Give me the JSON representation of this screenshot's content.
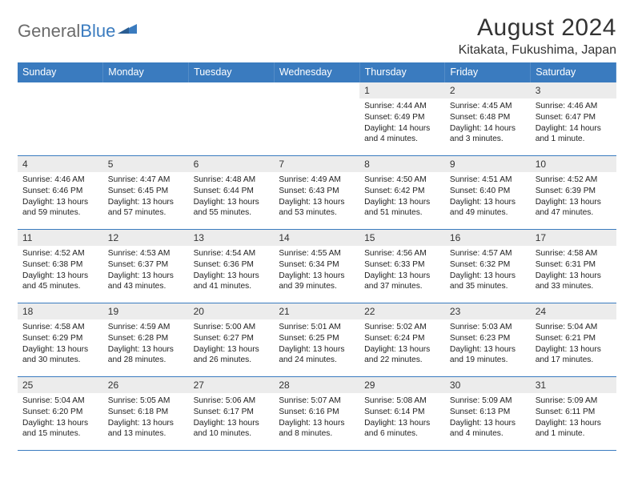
{
  "logo": {
    "text_gray": "General",
    "text_blue": "Blue"
  },
  "header": {
    "month_title": "August 2024",
    "location": "Kitakata, Fukushima, Japan"
  },
  "colors": {
    "header_bg": "#3a7bbf",
    "row_border": "#3a7bbf",
    "daynum_bg": "#ececec",
    "text": "#222222",
    "logo_gray": "#6b6b6b",
    "logo_blue": "#3a7bbf"
  },
  "weekdays": [
    "Sunday",
    "Monday",
    "Tuesday",
    "Wednesday",
    "Thursday",
    "Friday",
    "Saturday"
  ],
  "start_weekday_index": 4,
  "days": [
    {
      "n": 1,
      "sunrise": "4:44 AM",
      "sunset": "6:49 PM",
      "daylight": "14 hours and 4 minutes."
    },
    {
      "n": 2,
      "sunrise": "4:45 AM",
      "sunset": "6:48 PM",
      "daylight": "14 hours and 3 minutes."
    },
    {
      "n": 3,
      "sunrise": "4:46 AM",
      "sunset": "6:47 PM",
      "daylight": "14 hours and 1 minute."
    },
    {
      "n": 4,
      "sunrise": "4:46 AM",
      "sunset": "6:46 PM",
      "daylight": "13 hours and 59 minutes."
    },
    {
      "n": 5,
      "sunrise": "4:47 AM",
      "sunset": "6:45 PM",
      "daylight": "13 hours and 57 minutes."
    },
    {
      "n": 6,
      "sunrise": "4:48 AM",
      "sunset": "6:44 PM",
      "daylight": "13 hours and 55 minutes."
    },
    {
      "n": 7,
      "sunrise": "4:49 AM",
      "sunset": "6:43 PM",
      "daylight": "13 hours and 53 minutes."
    },
    {
      "n": 8,
      "sunrise": "4:50 AM",
      "sunset": "6:42 PM",
      "daylight": "13 hours and 51 minutes."
    },
    {
      "n": 9,
      "sunrise": "4:51 AM",
      "sunset": "6:40 PM",
      "daylight": "13 hours and 49 minutes."
    },
    {
      "n": 10,
      "sunrise": "4:52 AM",
      "sunset": "6:39 PM",
      "daylight": "13 hours and 47 minutes."
    },
    {
      "n": 11,
      "sunrise": "4:52 AM",
      "sunset": "6:38 PM",
      "daylight": "13 hours and 45 minutes."
    },
    {
      "n": 12,
      "sunrise": "4:53 AM",
      "sunset": "6:37 PM",
      "daylight": "13 hours and 43 minutes."
    },
    {
      "n": 13,
      "sunrise": "4:54 AM",
      "sunset": "6:36 PM",
      "daylight": "13 hours and 41 minutes."
    },
    {
      "n": 14,
      "sunrise": "4:55 AM",
      "sunset": "6:34 PM",
      "daylight": "13 hours and 39 minutes."
    },
    {
      "n": 15,
      "sunrise": "4:56 AM",
      "sunset": "6:33 PM",
      "daylight": "13 hours and 37 minutes."
    },
    {
      "n": 16,
      "sunrise": "4:57 AM",
      "sunset": "6:32 PM",
      "daylight": "13 hours and 35 minutes."
    },
    {
      "n": 17,
      "sunrise": "4:58 AM",
      "sunset": "6:31 PM",
      "daylight": "13 hours and 33 minutes."
    },
    {
      "n": 18,
      "sunrise": "4:58 AM",
      "sunset": "6:29 PM",
      "daylight": "13 hours and 30 minutes."
    },
    {
      "n": 19,
      "sunrise": "4:59 AM",
      "sunset": "6:28 PM",
      "daylight": "13 hours and 28 minutes."
    },
    {
      "n": 20,
      "sunrise": "5:00 AM",
      "sunset": "6:27 PM",
      "daylight": "13 hours and 26 minutes."
    },
    {
      "n": 21,
      "sunrise": "5:01 AM",
      "sunset": "6:25 PM",
      "daylight": "13 hours and 24 minutes."
    },
    {
      "n": 22,
      "sunrise": "5:02 AM",
      "sunset": "6:24 PM",
      "daylight": "13 hours and 22 minutes."
    },
    {
      "n": 23,
      "sunrise": "5:03 AM",
      "sunset": "6:23 PM",
      "daylight": "13 hours and 19 minutes."
    },
    {
      "n": 24,
      "sunrise": "5:04 AM",
      "sunset": "6:21 PM",
      "daylight": "13 hours and 17 minutes."
    },
    {
      "n": 25,
      "sunrise": "5:04 AM",
      "sunset": "6:20 PM",
      "daylight": "13 hours and 15 minutes."
    },
    {
      "n": 26,
      "sunrise": "5:05 AM",
      "sunset": "6:18 PM",
      "daylight": "13 hours and 13 minutes."
    },
    {
      "n": 27,
      "sunrise": "5:06 AM",
      "sunset": "6:17 PM",
      "daylight": "13 hours and 10 minutes."
    },
    {
      "n": 28,
      "sunrise": "5:07 AM",
      "sunset": "6:16 PM",
      "daylight": "13 hours and 8 minutes."
    },
    {
      "n": 29,
      "sunrise": "5:08 AM",
      "sunset": "6:14 PM",
      "daylight": "13 hours and 6 minutes."
    },
    {
      "n": 30,
      "sunrise": "5:09 AM",
      "sunset": "6:13 PM",
      "daylight": "13 hours and 4 minutes."
    },
    {
      "n": 31,
      "sunrise": "5:09 AM",
      "sunset": "6:11 PM",
      "daylight": "13 hours and 1 minute."
    }
  ],
  "labels": {
    "sunrise": "Sunrise:",
    "sunset": "Sunset:",
    "daylight": "Daylight:"
  }
}
